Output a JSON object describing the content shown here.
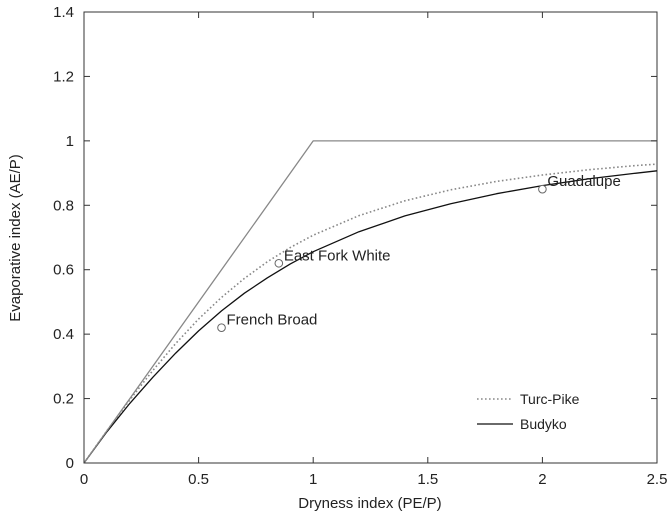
{
  "chart_data": {
    "type": "line",
    "xlabel": "Dryness index (PE/P)",
    "ylabel": "Evaporative index (AE/P)",
    "xlim": [
      0,
      2.5
    ],
    "ylim": [
      0,
      1.4
    ],
    "xticks": [
      0,
      0.5,
      1,
      1.5,
      2,
      2.5
    ],
    "xtick_labels": [
      "0",
      "0.5",
      "1",
      "1.5",
      "2",
      "2.5"
    ],
    "yticks": [
      0,
      0.2,
      0.4,
      0.6,
      0.8,
      1,
      1.2,
      1.4
    ],
    "ytick_labels": [
      "0",
      "0.2",
      "0.4",
      "0.6",
      "0.8",
      "1",
      "1.2",
      "1.4"
    ],
    "grid": false,
    "legend_position": "bottom-right",
    "series": [
      {
        "name": "Turc-Pike",
        "style": "dotted",
        "color": "#888888",
        "x": [
          0,
          0.1,
          0.2,
          0.3,
          0.4,
          0.5,
          0.6,
          0.7,
          0.8,
          0.9,
          1.0,
          1.2,
          1.4,
          1.6,
          1.8,
          2.0,
          2.2,
          2.4,
          2.5
        ],
        "y": [
          0,
          0.1,
          0.196,
          0.287,
          0.371,
          0.447,
          0.514,
          0.573,
          0.625,
          0.669,
          0.707,
          0.768,
          0.814,
          0.848,
          0.874,
          0.894,
          0.91,
          0.923,
          0.928
        ]
      },
      {
        "name": "Budyko",
        "style": "solid",
        "color": "#111111",
        "x": [
          0,
          0.1,
          0.2,
          0.3,
          0.4,
          0.5,
          0.6,
          0.7,
          0.8,
          0.9,
          1.0,
          1.2,
          1.4,
          1.6,
          1.8,
          2.0,
          2.2,
          2.4,
          2.5
        ],
        "y": [
          0,
          0.097,
          0.185,
          0.266,
          0.341,
          0.41,
          0.472,
          0.527,
          0.575,
          0.618,
          0.656,
          0.718,
          0.767,
          0.805,
          0.836,
          0.861,
          0.882,
          0.899,
          0.907
        ]
      },
      {
        "style": "solid",
        "color": "#888888",
        "x": [
          0,
          1,
          2.5
        ],
        "y": [
          0,
          1,
          1
        ]
      }
    ],
    "points": [
      {
        "label": "French Broad",
        "x": 0.6,
        "y": 0.42
      },
      {
        "label": "East Fork White",
        "x": 0.85,
        "y": 0.62
      },
      {
        "label": "Guadalupe",
        "x": 2.0,
        "y": 0.85
      }
    ]
  }
}
